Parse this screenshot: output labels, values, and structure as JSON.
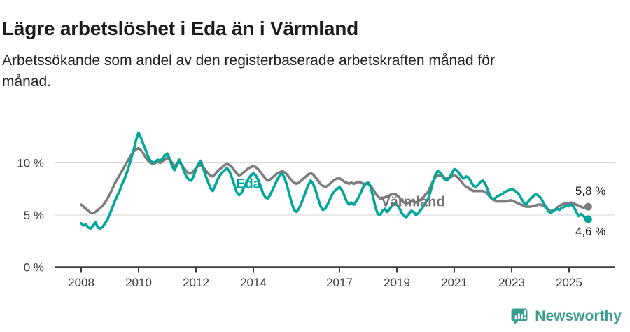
{
  "header": {
    "title": "Lägre arbetslöshet i Eda än i Värmland",
    "subtitle": "Arbetssökande som andel av den registerbaserade arbetskraften månad för månad.",
    "subtitle_lines": [
      "Arbetssökande som andel av den registerbaserade arbetskraften månad för",
      "månad."
    ]
  },
  "colors": {
    "eda": "#00a69a",
    "varmland": "#7d7d7d",
    "varmland_label": "#757575",
    "grid": "#dcdcdc",
    "axis": "#3c3c3c",
    "tick_text": "#3c3c3c",
    "end_label_text": "#1a1a1a",
    "brand": "#3a9c8f"
  },
  "footer": {
    "brand": "Newsworthy"
  },
  "chart_data": {
    "type": "line",
    "unit": "%",
    "frequency": "monthly",
    "start": "2008-01",
    "end": "2025-09",
    "ylim": [
      0,
      13.5
    ],
    "grid": "horizontal",
    "legend_position": "inline-labels",
    "y_ticks": [
      {
        "value": 0,
        "label": "0 %"
      },
      {
        "value": 5,
        "label": "5 %"
      },
      {
        "value": 10,
        "label": "10 %"
      }
    ],
    "x_ticks": [
      {
        "year": 2008,
        "label": "2008"
      },
      {
        "year": 2010,
        "label": "2010"
      },
      {
        "year": 2012,
        "label": "2012"
      },
      {
        "year": 2014,
        "label": "2014"
      },
      {
        "year": 2017,
        "label": "2017"
      },
      {
        "year": 2019,
        "label": "2019"
      },
      {
        "year": 2021,
        "label": "2021"
      },
      {
        "year": 2023,
        "label": "2023"
      },
      {
        "year": 2025,
        "label": "2025"
      }
    ],
    "series": [
      {
        "id": "varmland",
        "name": "Värmland",
        "color_key": "varmland",
        "label_color_key": "varmland_label",
        "end_label": "5,8 %",
        "end_value": 5.8,
        "end_label_side": "above",
        "label_anchor": {
          "year": 2018.45,
          "value": 6.25
        },
        "values": [
          6.0,
          5.8,
          5.6,
          5.4,
          5.2,
          5.2,
          5.3,
          5.5,
          5.7,
          5.9,
          6.2,
          6.6,
          7.0,
          7.5,
          8.0,
          8.4,
          8.8,
          9.2,
          9.6,
          10.0,
          10.4,
          10.8,
          11.1,
          11.3,
          11.4,
          11.2,
          10.9,
          10.5,
          10.2,
          10.0,
          9.9,
          10.0,
          10.1,
          10.0,
          10.1,
          10.3,
          10.5,
          10.3,
          10.0,
          9.7,
          9.9,
          10.1,
          9.8,
          9.5,
          9.2,
          9.0,
          9.0,
          9.2,
          9.5,
          9.7,
          9.8,
          9.6,
          9.3,
          9.0,
          8.8,
          8.7,
          8.9,
          9.2,
          9.4,
          9.6,
          9.8,
          9.9,
          9.8,
          9.6,
          9.3,
          9.0,
          8.8,
          8.9,
          9.1,
          9.3,
          9.5,
          9.6,
          9.7,
          9.6,
          9.4,
          9.1,
          8.8,
          8.5,
          8.3,
          8.4,
          8.6,
          8.8,
          9.0,
          9.1,
          9.2,
          9.1,
          8.9,
          8.6,
          8.3,
          8.1,
          8.0,
          8.1,
          8.3,
          8.5,
          8.7,
          8.9,
          9.0,
          8.9,
          8.6,
          8.3,
          8.0,
          7.8,
          7.7,
          7.8,
          8.0,
          8.2,
          8.4,
          8.5,
          8.5,
          8.4,
          8.2,
          8.1,
          8.0,
          8.1,
          8.0,
          8.1,
          8.2,
          8.1,
          8.0,
          8.0,
          8.0,
          7.8,
          7.5,
          7.1,
          6.8,
          6.6,
          6.6,
          6.7,
          6.8,
          6.9,
          7.0,
          7.0,
          6.9,
          6.7,
          6.4,
          6.2,
          6.1,
          6.2,
          6.3,
          6.3,
          6.2,
          6.3,
          6.5,
          6.7,
          7.0,
          7.2,
          7.7,
          8.2,
          8.6,
          8.8,
          8.8,
          8.7,
          8.6,
          8.5,
          8.6,
          8.7,
          8.8,
          8.7,
          8.5,
          8.2,
          7.9,
          7.7,
          7.6,
          7.4,
          7.3,
          7.3,
          7.3,
          7.3,
          7.3,
          7.2,
          7.0,
          6.7,
          6.5,
          6.4,
          6.3,
          6.3,
          6.3,
          6.3,
          6.3,
          6.4,
          6.4,
          6.3,
          6.2,
          6.1,
          6.0,
          5.9,
          5.8,
          5.8,
          5.8,
          5.9,
          5.9,
          6.0,
          6.0,
          5.9,
          5.8,
          5.6,
          5.4,
          5.4,
          5.5,
          5.7,
          5.9,
          6.0,
          6.1,
          6.1,
          6.1,
          6.2,
          6.1,
          6.0,
          5.9,
          5.8,
          5.7,
          5.7,
          5.8
        ]
      },
      {
        "id": "eda",
        "name": "Eda",
        "color_key": "eda",
        "label_color_key": "eda",
        "end_label": "4,6 %",
        "end_value": 4.6,
        "end_label_side": "below",
        "label_anchor": {
          "year": 2013.4,
          "value": 8.0
        },
        "values": [
          4.2,
          4.0,
          4.1,
          3.8,
          3.7,
          4.0,
          4.3,
          3.8,
          3.7,
          3.9,
          4.2,
          4.6,
          5.1,
          5.7,
          6.3,
          6.8,
          7.3,
          7.9,
          8.4,
          9.0,
          9.7,
          10.5,
          11.3,
          12.2,
          12.9,
          12.4,
          11.8,
          11.2,
          10.6,
          10.2,
          10.0,
          10.1,
          10.3,
          10.2,
          10.4,
          10.7,
          10.9,
          10.4,
          9.7,
          9.3,
          9.8,
          10.3,
          9.8,
          9.2,
          8.7,
          8.4,
          8.3,
          8.7,
          9.4,
          9.9,
          10.2,
          9.5,
          8.8,
          8.2,
          7.6,
          7.3,
          7.8,
          8.4,
          8.8,
          9.1,
          9.3,
          9.5,
          9.2,
          8.6,
          7.9,
          7.2,
          6.9,
          7.1,
          7.6,
          8.1,
          8.5,
          8.8,
          9.0,
          8.8,
          8.4,
          7.8,
          7.1,
          6.7,
          6.6,
          6.9,
          7.4,
          7.9,
          8.4,
          8.8,
          9.0,
          8.6,
          7.9,
          7.0,
          6.2,
          5.5,
          5.3,
          5.6,
          6.1,
          6.7,
          7.3,
          7.9,
          8.3,
          8.0,
          7.4,
          6.6,
          5.9,
          5.5,
          5.6,
          6.0,
          6.5,
          7.0,
          7.3,
          7.5,
          7.7,
          7.4,
          6.9,
          6.3,
          6.0,
          6.2,
          6.0,
          6.3,
          6.7,
          7.2,
          7.7,
          8.0,
          8.1,
          7.7,
          6.8,
          5.8,
          5.1,
          5.0,
          5.4,
          5.6,
          5.3,
          5.6,
          5.9,
          6.1,
          6.0,
          5.7,
          5.2,
          4.9,
          4.8,
          5.1,
          5.4,
          5.3,
          5.0,
          5.2,
          5.5,
          5.8,
          6.2,
          6.5,
          7.2,
          8.1,
          8.8,
          9.2,
          9.1,
          8.8,
          8.4,
          8.3,
          8.6,
          9.0,
          9.4,
          9.3,
          9.0,
          8.7,
          8.5,
          8.7,
          8.6,
          8.2,
          7.8,
          7.7,
          7.9,
          8.2,
          8.3,
          8.0,
          7.4,
          6.8,
          6.5,
          6.6,
          6.8,
          6.9,
          7.0,
          7.2,
          7.3,
          7.4,
          7.5,
          7.4,
          7.2,
          7.0,
          6.6,
          6.2,
          6.0,
          6.3,
          6.6,
          6.8,
          7.0,
          6.9,
          6.7,
          6.3,
          5.9,
          5.5,
          5.2,
          5.3,
          5.5,
          5.6,
          5.5,
          5.7,
          5.8,
          5.9,
          5.9,
          6.0,
          5.8,
          5.3,
          4.9,
          5.1,
          4.9,
          4.7,
          4.6
        ]
      }
    ]
  }
}
